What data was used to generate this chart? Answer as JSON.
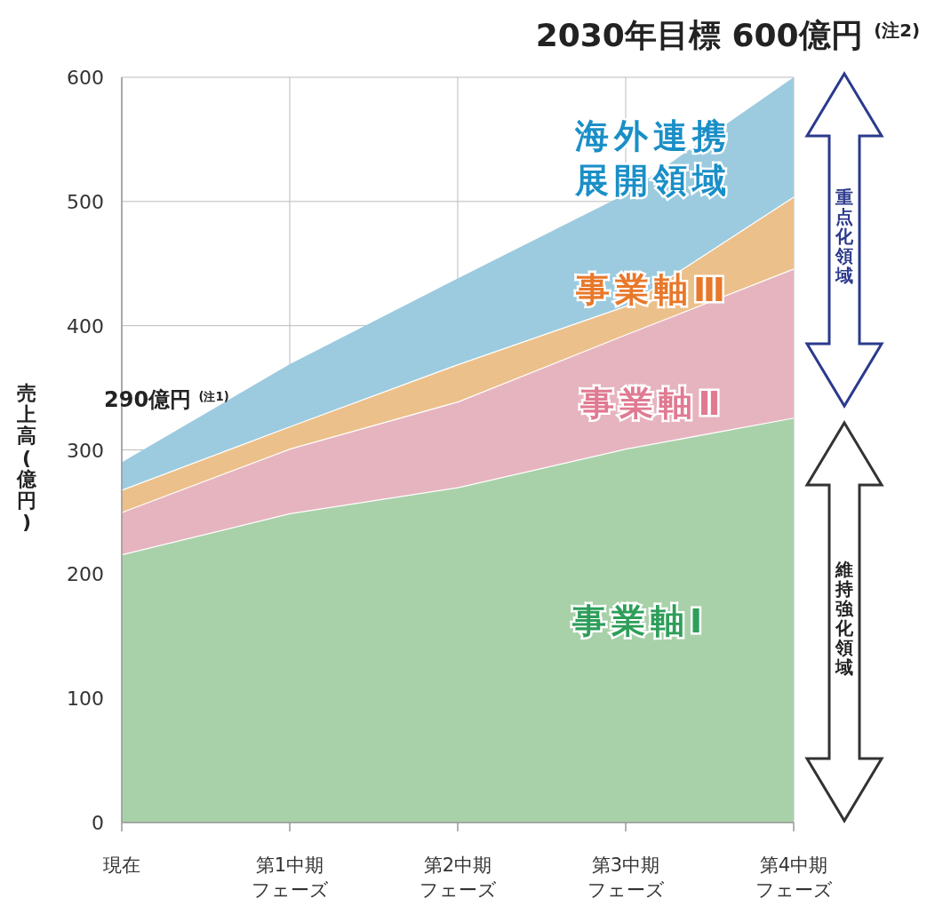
{
  "chart_data": {
    "type": "area",
    "stacked": true,
    "title": "2030年目標 600億円 $^{(注2)}$",
    "ylabel": "売上高(億円)",
    "categories": [
      "現在",
      "第1中期フェーズ",
      "第2中期フェーズ",
      "第3中期フェーズ",
      "第4中期フェーズ"
    ],
    "series": [
      {
        "name": "事業軸Ⅰ",
        "color": "#a9d1a9",
        "values": [
          216,
          249,
          270,
          301,
          326
        ]
      },
      {
        "name": "事業軸Ⅱ",
        "color": "#e6b4bf",
        "values": [
          34,
          52,
          69,
          92,
          120
        ]
      },
      {
        "name": "事業軸Ⅲ",
        "color": "#ecc08a",
        "values": [
          18,
          18,
          30,
          23,
          58
        ]
      },
      {
        "name": "海外連携展開領域",
        "color": "#9ccbdf",
        "values": [
          22,
          50,
          69,
          90,
          96
        ]
      }
    ],
    "ylim": [
      0,
      600
    ],
    "yticks": [
      0,
      100,
      200,
      300,
      400,
      500,
      600
    ],
    "grid": true,
    "annotations": [
      {
        "text": "290億円 $^{(注1)}$",
        "x": "現在",
        "y": 290
      },
      "重点化領域",
      "維持強化領域"
    ]
  }
}
